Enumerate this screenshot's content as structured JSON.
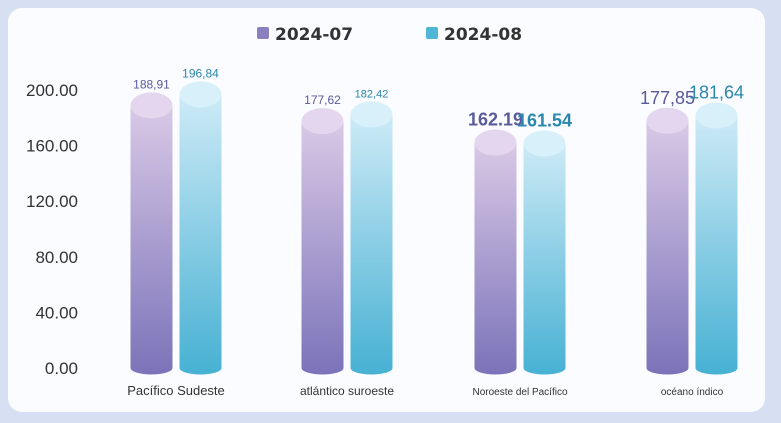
{
  "chart_data": {
    "type": "bar",
    "title": "",
    "xlabel": "",
    "ylabel": "",
    "categories": [
      "Pacífico Sudeste",
      "atlántico suroeste",
      "Noroeste del Pacífico",
      "océano índico"
    ],
    "series": [
      {
        "name": "2024-07",
        "values": [
          188.91,
          177.62,
          162.19,
          177.85
        ],
        "labels": [
          "188,91",
          "177,62",
          "162.19",
          "177,85"
        ],
        "color": "#8a7fbf"
      },
      {
        "name": "2024-08",
        "values": [
          196.84,
          182.42,
          161.54,
          181.64
        ],
        "labels": [
          "196,84",
          "182,42",
          "161.54",
          "181,64"
        ],
        "color": "#4fb6d6"
      }
    ],
    "yticks": [
      "0.00",
      "40.00",
      "80.00",
      "120.00",
      "160.00",
      "200.00"
    ],
    "ylim": [
      0,
      200
    ],
    "legend_position": "top-center",
    "grid": false
  }
}
